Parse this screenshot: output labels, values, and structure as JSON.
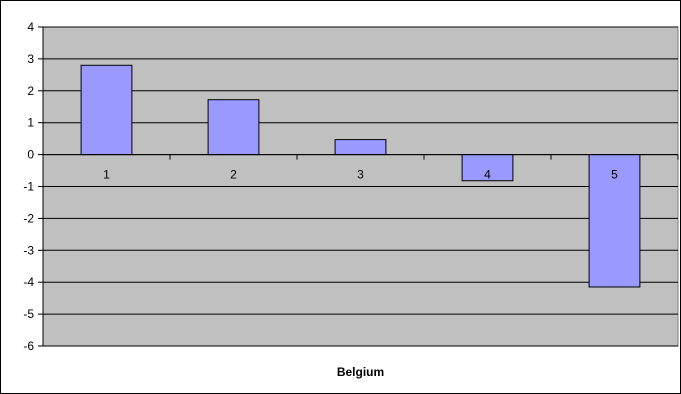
{
  "chart_data": {
    "type": "bar",
    "categories": [
      "1",
      "2",
      "3",
      "4",
      "5"
    ],
    "values": [
      2.8,
      1.72,
      0.47,
      -0.82,
      -4.15
    ],
    "title": "",
    "xlabel": "Belgium",
    "ylabel": "",
    "ylim": [
      -6,
      4
    ],
    "yticks": [
      "-6",
      "-5",
      "-4",
      "-3",
      "-2",
      "-1",
      "0",
      "1",
      "2",
      "3",
      "4"
    ],
    "grid": true,
    "legend": "none",
    "colors": {
      "plot_background": "#c0c0c0",
      "bar_fill": "#9999ff",
      "bar_stroke": "#000000",
      "gridline": "#000000"
    }
  }
}
